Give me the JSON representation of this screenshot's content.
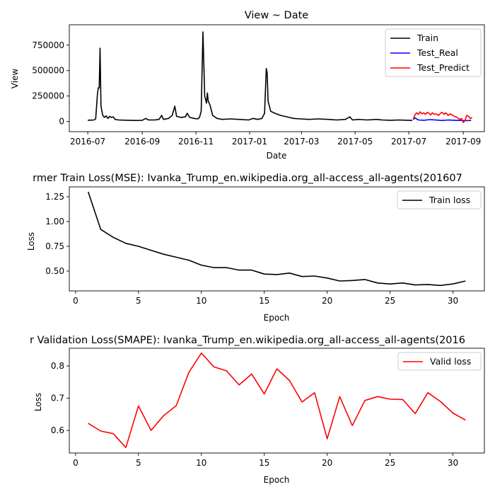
{
  "chart_data": [
    {
      "type": "line",
      "title": "View ~ Date",
      "xlabel": "Date",
      "ylabel": "View",
      "x_ticks": [
        "2016-07",
        "2016-09",
        "2016-11",
        "2017-01",
        "2017-03",
        "2017-05",
        "2017-07",
        "2017-09"
      ],
      "y_ticks": [
        "0",
        "250000",
        "500000",
        "750000"
      ],
      "ylim": [
        -100000,
        950000
      ],
      "xlim": [
        "2016-06-10",
        "2017-09-25"
      ],
      "legend_position": "top-right",
      "grid": false,
      "series": [
        {
          "name": "Train",
          "color": "#000000",
          "points": [
            [
              "2016-07-01",
              12000
            ],
            [
              "2016-07-08",
              15000
            ],
            [
              "2016-07-10",
              25000
            ],
            [
              "2016-07-12",
              270000
            ],
            [
              "2016-07-13",
              330000
            ],
            [
              "2016-07-14",
              330000
            ],
            [
              "2016-07-15",
              720000
            ],
            [
              "2016-07-16",
              150000
            ],
            [
              "2016-07-18",
              60000
            ],
            [
              "2016-07-20",
              40000
            ],
            [
              "2016-07-22",
              55000
            ],
            [
              "2016-07-24",
              30000
            ],
            [
              "2016-07-26",
              50000
            ],
            [
              "2016-07-28",
              40000
            ],
            [
              "2016-07-30",
              45000
            ],
            [
              "2016-08-01",
              20000
            ],
            [
              "2016-08-05",
              15000
            ],
            [
              "2016-08-15",
              12000
            ],
            [
              "2016-08-25",
              10000
            ],
            [
              "2016-09-01",
              12000
            ],
            [
              "2016-09-05",
              30000
            ],
            [
              "2016-09-08",
              15000
            ],
            [
              "2016-09-15",
              15000
            ],
            [
              "2016-09-20",
              20000
            ],
            [
              "2016-09-23",
              60000
            ],
            [
              "2016-09-25",
              20000
            ],
            [
              "2016-10-01",
              30000
            ],
            [
              "2016-10-05",
              60000
            ],
            [
              "2016-10-08",
              150000
            ],
            [
              "2016-10-10",
              50000
            ],
            [
              "2016-10-15",
              40000
            ],
            [
              "2016-10-20",
              45000
            ],
            [
              "2016-10-22",
              80000
            ],
            [
              "2016-10-25",
              40000
            ],
            [
              "2016-10-30",
              30000
            ],
            [
              "2016-11-03",
              25000
            ],
            [
              "2016-11-05",
              40000
            ],
            [
              "2016-11-07",
              100000
            ],
            [
              "2016-11-09",
              880000
            ],
            [
              "2016-11-10",
              550000
            ],
            [
              "2016-11-11",
              250000
            ],
            [
              "2016-11-13",
              180000
            ],
            [
              "2016-11-14",
              280000
            ],
            [
              "2016-11-15",
              200000
            ],
            [
              "2016-11-17",
              160000
            ],
            [
              "2016-11-20",
              60000
            ],
            [
              "2016-11-25",
              30000
            ],
            [
              "2016-12-01",
              20000
            ],
            [
              "2016-12-10",
              25000
            ],
            [
              "2016-12-20",
              20000
            ],
            [
              "2016-12-31",
              15000
            ],
            [
              "2017-01-05",
              30000
            ],
            [
              "2017-01-10",
              20000
            ],
            [
              "2017-01-15",
              30000
            ],
            [
              "2017-01-18",
              80000
            ],
            [
              "2017-01-20",
              520000
            ],
            [
              "2017-01-21",
              480000
            ],
            [
              "2017-01-22",
              200000
            ],
            [
              "2017-01-25",
              100000
            ],
            [
              "2017-01-30",
              80000
            ],
            [
              "2017-02-05",
              60000
            ],
            [
              "2017-02-10",
              50000
            ],
            [
              "2017-02-15",
              40000
            ],
            [
              "2017-02-20",
              30000
            ],
            [
              "2017-02-28",
              25000
            ],
            [
              "2017-03-10",
              20000
            ],
            [
              "2017-03-20",
              25000
            ],
            [
              "2017-04-01",
              20000
            ],
            [
              "2017-04-10",
              15000
            ],
            [
              "2017-04-20",
              20000
            ],
            [
              "2017-04-25",
              45000
            ],
            [
              "2017-04-28",
              15000
            ],
            [
              "2017-05-05",
              20000
            ],
            [
              "2017-05-15",
              15000
            ],
            [
              "2017-05-25",
              20000
            ],
            [
              "2017-06-01",
              15000
            ],
            [
              "2017-06-10",
              12000
            ],
            [
              "2017-06-20",
              15000
            ],
            [
              "2017-06-30",
              12000
            ],
            [
              "2017-07-05",
              10000
            ]
          ]
        },
        {
          "name": "Test_Real",
          "color": "#0000ff",
          "points": [
            [
              "2017-07-06",
              18000
            ],
            [
              "2017-07-08",
              35000
            ],
            [
              "2017-07-12",
              15000
            ],
            [
              "2017-07-18",
              12000
            ],
            [
              "2017-07-25",
              18000
            ],
            [
              "2017-08-01",
              14000
            ],
            [
              "2017-08-08",
              10000
            ],
            [
              "2017-08-15",
              15000
            ],
            [
              "2017-08-22",
              12000
            ],
            [
              "2017-08-29",
              10000
            ],
            [
              "2017-09-05",
              8000
            ],
            [
              "2017-09-10",
              12000
            ]
          ]
        },
        {
          "name": "Test_Predict",
          "color": "#ff0000",
          "points": [
            [
              "2017-07-06",
              20000
            ],
            [
              "2017-07-08",
              65000
            ],
            [
              "2017-07-10",
              85000
            ],
            [
              "2017-07-12",
              70000
            ],
            [
              "2017-07-14",
              95000
            ],
            [
              "2017-07-16",
              75000
            ],
            [
              "2017-07-18",
              85000
            ],
            [
              "2017-07-20",
              70000
            ],
            [
              "2017-07-22",
              90000
            ],
            [
              "2017-07-24",
              80000
            ],
            [
              "2017-07-26",
              65000
            ],
            [
              "2017-07-28",
              85000
            ],
            [
              "2017-07-30",
              70000
            ],
            [
              "2017-08-01",
              75000
            ],
            [
              "2017-08-04",
              60000
            ],
            [
              "2017-08-06",
              80000
            ],
            [
              "2017-08-08",
              90000
            ],
            [
              "2017-08-10",
              70000
            ],
            [
              "2017-08-12",
              85000
            ],
            [
              "2017-08-15",
              60000
            ],
            [
              "2017-08-17",
              75000
            ],
            [
              "2017-08-20",
              60000
            ],
            [
              "2017-08-22",
              50000
            ],
            [
              "2017-08-25",
              40000
            ],
            [
              "2017-08-28",
              20000
            ],
            [
              "2017-08-30",
              30000
            ],
            [
              "2017-09-01",
              -10000
            ],
            [
              "2017-09-03",
              10000
            ],
            [
              "2017-09-05",
              60000
            ],
            [
              "2017-09-07",
              50000
            ],
            [
              "2017-09-09",
              30000
            ],
            [
              "2017-09-11",
              40000
            ]
          ]
        }
      ]
    },
    {
      "type": "line",
      "title": "rmer Train Loss(MSE): Ivanka_Trump_en.wikipedia.org_all-access_all-agents(201607",
      "xlabel": "Epoch",
      "ylabel": "Loss",
      "x_ticks": [
        0,
        5,
        10,
        15,
        20,
        25,
        30
      ],
      "y_ticks": [
        0.5,
        0.75,
        1.0,
        1.25
      ],
      "y_tick_labels": [
        "0.50",
        "0.75",
        "1.00",
        "1.25"
      ],
      "xlim": [
        -0.5,
        32.5
      ],
      "ylim": [
        0.3,
        1.35
      ],
      "legend_position": "top-right",
      "grid": false,
      "series": [
        {
          "name": "Train loss",
          "color": "#000000",
          "x": [
            1,
            2,
            3,
            4,
            5,
            6,
            7,
            8,
            9,
            10,
            11,
            12,
            13,
            14,
            15,
            16,
            17,
            18,
            19,
            20,
            21,
            22,
            23,
            24,
            25,
            26,
            27,
            28,
            29,
            30,
            31
          ],
          "values": [
            1.3,
            0.92,
            0.84,
            0.78,
            0.75,
            0.71,
            0.67,
            0.64,
            0.61,
            0.56,
            0.535,
            0.535,
            0.51,
            0.51,
            0.47,
            0.465,
            0.48,
            0.445,
            0.45,
            0.43,
            0.4,
            0.405,
            0.415,
            0.38,
            0.37,
            0.38,
            0.36,
            0.365,
            0.355,
            0.37,
            0.4
          ]
        }
      ]
    },
    {
      "type": "line",
      "title": "r Validation Loss(SMAPE): Ivanka_Trump_en.wikipedia.org_all-access_all-agents(2016",
      "xlabel": "Epoch",
      "ylabel": "Loss",
      "x_ticks": [
        0,
        5,
        10,
        15,
        20,
        25,
        30
      ],
      "y_ticks": [
        0.6,
        0.7,
        0.8
      ],
      "y_tick_labels": [
        "0.6",
        "0.7",
        "0.8"
      ],
      "xlim": [
        -0.5,
        32.5
      ],
      "ylim": [
        0.53,
        0.855
      ],
      "legend_position": "top-right",
      "grid": false,
      "series": [
        {
          "name": "Valid loss",
          "color": "#ff0000",
          "x": [
            1,
            2,
            3,
            4,
            5,
            6,
            7,
            8,
            9,
            10,
            11,
            12,
            13,
            14,
            15,
            16,
            17,
            18,
            19,
            20,
            21,
            22,
            23,
            24,
            25,
            26,
            27,
            28,
            29,
            30,
            31
          ],
          "values": [
            0.622,
            0.598,
            0.59,
            0.547,
            0.676,
            0.6,
            0.646,
            0.677,
            0.78,
            0.84,
            0.797,
            0.785,
            0.741,
            0.775,
            0.713,
            0.791,
            0.755,
            0.688,
            0.717,
            0.574,
            0.705,
            0.615,
            0.693,
            0.705,
            0.697,
            0.696,
            0.652,
            0.717,
            0.69,
            0.654,
            0.632
          ]
        }
      ]
    }
  ]
}
